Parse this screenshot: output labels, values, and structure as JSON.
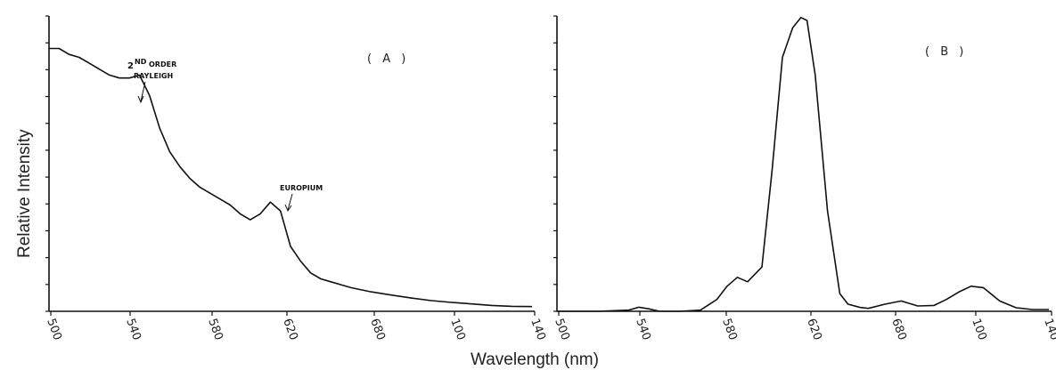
{
  "chart_data": [
    {
      "type": "line",
      "panel_label": "( A )",
      "x_tick_labels": [
        "500",
        "540",
        "580",
        "620",
        "680",
        "100",
        "140"
      ],
      "x": [
        500,
        505,
        510,
        515,
        520,
        525,
        530,
        535,
        540,
        545,
        550,
        555,
        560,
        565,
        570,
        575,
        580,
        585,
        590,
        595,
        600,
        605,
        610,
        615,
        620,
        625,
        630,
        635,
        640,
        650,
        660,
        670,
        680,
        690,
        700,
        710,
        720,
        730,
        740
      ],
      "y": [
        0.89,
        0.89,
        0.87,
        0.86,
        0.84,
        0.82,
        0.8,
        0.79,
        0.79,
        0.8,
        0.73,
        0.62,
        0.54,
        0.49,
        0.45,
        0.42,
        0.4,
        0.38,
        0.36,
        0.33,
        0.31,
        0.33,
        0.37,
        0.34,
        0.22,
        0.17,
        0.13,
        0.11,
        0.1,
        0.08,
        0.066,
        0.055,
        0.045,
        0.036,
        0.03,
        0.025,
        0.02,
        0.017,
        0.016
      ],
      "annotations": [
        {
          "superscript_text": "ND",
          "text_main": "2",
          "text_rest": "ORDER",
          "line2": "RAYLEIGH"
        },
        {
          "text": "EUROPIUM"
        }
      ]
    },
    {
      "type": "line",
      "panel_label": "( B )",
      "x_tick_labels": [
        "500",
        "540",
        "580",
        "620",
        "680",
        "100",
        "140"
      ],
      "x": [
        500,
        520,
        535,
        540,
        545,
        550,
        560,
        570,
        578,
        583,
        588,
        593,
        600,
        605,
        610,
        615,
        619,
        622,
        626,
        632,
        638,
        642,
        648,
        652,
        660,
        668,
        676,
        684,
        690,
        696,
        702,
        708,
        716,
        724,
        732,
        740
      ],
      "y": [
        0.0,
        0.0,
        0.004,
        0.014,
        0.008,
        0.0,
        0.0,
        0.004,
        0.04,
        0.085,
        0.115,
        0.1,
        0.15,
        0.48,
        0.86,
        0.96,
        0.995,
        0.985,
        0.8,
        0.34,
        0.06,
        0.024,
        0.013,
        0.01,
        0.024,
        0.035,
        0.018,
        0.02,
        0.04,
        0.065,
        0.085,
        0.08,
        0.035,
        0.012,
        0.006,
        0.006
      ]
    }
  ],
  "y_axis_title": "Relative  Intensity",
  "x_axis_title": "Wavelength  (nm)"
}
